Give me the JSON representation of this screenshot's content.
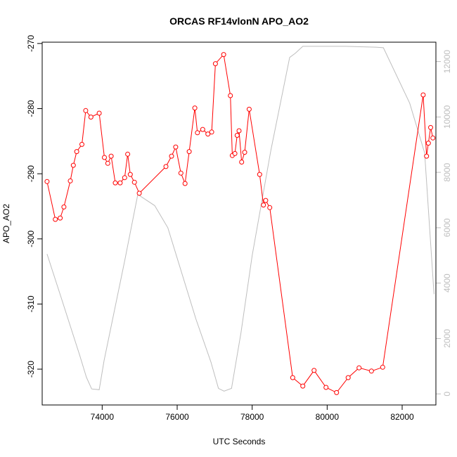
{
  "chart_data": {
    "type": "line",
    "title": "ORCAS RF14vlonN APO_AO2",
    "xlabel": "UTC Seconds",
    "ylabel": "APO_AO2",
    "xlim": [
      72400,
      82900
    ],
    "ylim": [
      -325.5,
      -269.8
    ],
    "y2lim": [
      -400,
      12700
    ],
    "x_ticks": [
      74000,
      76000,
      78000,
      80000,
      82000
    ],
    "x_tick_labels": [
      "74000",
      "76000",
      "78000",
      "80000",
      "82000"
    ],
    "y_ticks": [
      -320,
      -310,
      -300,
      -290,
      -280,
      -270
    ],
    "y_tick_labels": [
      "-320",
      "-310",
      "-300",
      "-290",
      "-280",
      "-270"
    ],
    "y2_ticks": [
      0,
      2000,
      4000,
      6000,
      8000,
      10000,
      12000
    ],
    "y2_tick_labels": [
      "0",
      "2000",
      "4000",
      "6000",
      "8000",
      "10000",
      "12000"
    ],
    "grid": false,
    "colors": {
      "apo": "#ff0000",
      "altitude": "#bebebe",
      "axes": "#000000"
    },
    "series": [
      {
        "axis": "left",
        "style": "line-points",
        "color": "#ff0000",
        "x": [
          72530,
          72750,
          72880,
          72980,
          73150,
          73230,
          73320,
          73460,
          73560,
          73700,
          73920,
          74060,
          74150,
          74240,
          74350,
          74480,
          74600,
          74680,
          74750,
          74860,
          74990,
          75700,
          75850,
          75960,
          76100,
          76210,
          76320,
          76470,
          76540,
          76680,
          76820,
          76920,
          77020,
          77240,
          77420,
          77470,
          77540,
          77600,
          77650,
          77720,
          77800,
          77920,
          78200,
          78300,
          78360,
          78470,
          79080,
          79350,
          79650,
          79970,
          80250,
          80560,
          80850,
          81180,
          81480,
          82560,
          82650,
          82700,
          82760,
          82820
        ],
        "y": [
          -291.2,
          -297.0,
          -296.8,
          -295.1,
          -291.1,
          -288.7,
          -286.6,
          -285.5,
          -280.3,
          -281.3,
          -280.7,
          -287.5,
          -288.4,
          -287.3,
          -291.4,
          -291.4,
          -290.6,
          -287.0,
          -290.1,
          -291.3,
          -293.0,
          -288.9,
          -287.3,
          -285.9,
          -289.9,
          -291.5,
          -286.6,
          -279.9,
          -283.7,
          -283.2,
          -283.9,
          -283.6,
          -273.1,
          -271.7,
          -278.0,
          -287.2,
          -286.9,
          -284.1,
          -283.4,
          -288.2,
          -286.7,
          -280.1,
          -290.1,
          -294.8,
          -294.1,
          -295.2,
          -321.3,
          -322.6,
          -320.2,
          -322.8,
          -323.6,
          -321.3,
          -319.8,
          -320.3,
          -319.7,
          -277.9,
          -287.3,
          -285.3,
          -282.9,
          -284.5
        ]
      },
      {
        "axis": "right",
        "style": "line",
        "color": "#bebebe",
        "x": [
          72530,
          72900,
          73400,
          73580,
          73720,
          73920,
          74050,
          74600,
          74950,
          75400,
          75750,
          76500,
          76900,
          77100,
          77250,
          77450,
          77700,
          78000,
          78500,
          79000,
          79150,
          79350,
          79800,
          80500,
          81300,
          81500,
          82200,
          82600,
          82850
        ],
        "y": [
          5050,
          3500,
          1400,
          600,
          180,
          150,
          1200,
          4800,
          7200,
          6800,
          6000,
          2700,
          1150,
          200,
          100,
          200,
          2200,
          5000,
          8800,
          12150,
          12300,
          12550,
          12550,
          12550,
          12520,
          12500,
          10500,
          8700,
          3600
        ]
      }
    ]
  }
}
